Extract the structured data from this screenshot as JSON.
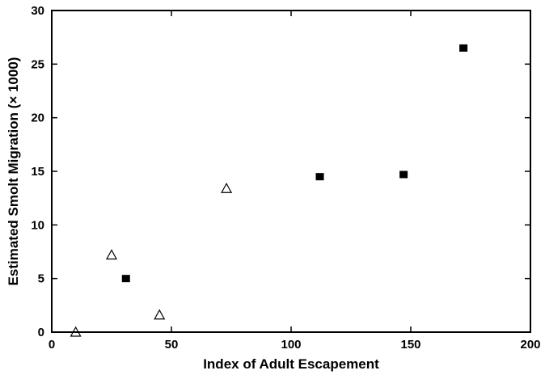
{
  "chart_data": {
    "type": "scatter",
    "title": "",
    "xlabel": "Index of Adult Escapement",
    "ylabel": "Estimated Smolt Migration (× 1000)",
    "xlim": [
      0,
      200
    ],
    "ylim": [
      0,
      30
    ],
    "x_ticks": [
      0,
      50,
      100,
      150,
      200
    ],
    "y_ticks": [
      0,
      5,
      10,
      15,
      20,
      25,
      30
    ],
    "grid": false,
    "legend": "none",
    "series": [
      {
        "marker": "open-triangle",
        "color": "#000000",
        "points": [
          {
            "x": 10,
            "y": 0
          },
          {
            "x": 25,
            "y": 7.2
          },
          {
            "x": 45,
            "y": 1.6
          },
          {
            "x": 73,
            "y": 13.4
          }
        ]
      },
      {
        "marker": "filled-square",
        "color": "#000000",
        "points": [
          {
            "x": 31,
            "y": 5.0
          },
          {
            "x": 112,
            "y": 14.5
          },
          {
            "x": 147,
            "y": 14.7
          },
          {
            "x": 172,
            "y": 26.5
          }
        ]
      }
    ]
  }
}
